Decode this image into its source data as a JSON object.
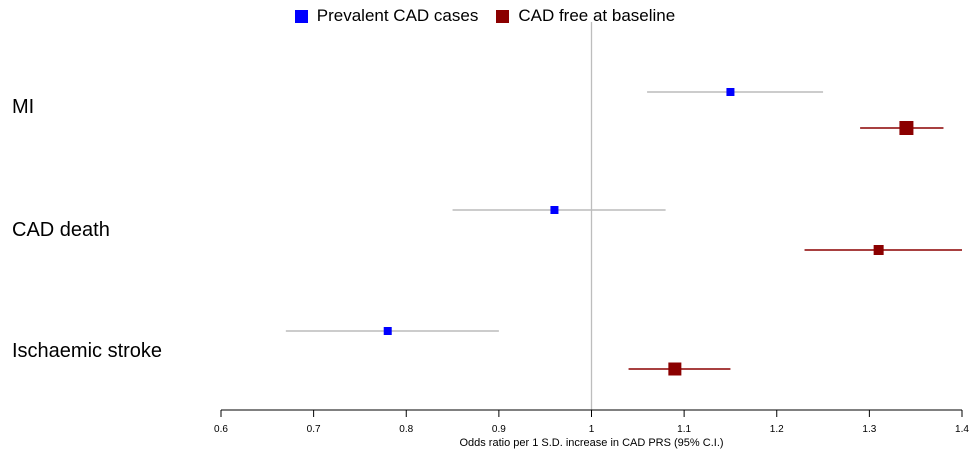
{
  "chart_data": {
    "type": "forest",
    "title": "",
    "xlabel": "Odds ratio per 1 S.D. increase in CAD PRS (95% C.I.)",
    "xlim": [
      0.6,
      1.4
    ],
    "xticks": [
      "0.6",
      "0.7",
      "0.8",
      "0.9",
      "1",
      "1.1",
      "1.2",
      "1.3",
      "1.4"
    ],
    "reference_line": 1,
    "legend_position": "top-center",
    "series": [
      {
        "name": "Prevalent CAD cases",
        "color": "#0000ff",
        "ci_color": "#bbbbbb"
      },
      {
        "name": "CAD free at baseline",
        "color": "#8b0000",
        "ci_color": "#8b0000"
      }
    ],
    "rows": [
      {
        "label": "MI",
        "values": [
          {
            "series": 0,
            "or": 1.15,
            "lo": 1.06,
            "hi": 1.25
          },
          {
            "series": 1,
            "or": 1.34,
            "lo": 1.29,
            "hi": 1.38
          }
        ]
      },
      {
        "label": "CAD death",
        "values": [
          {
            "series": 0,
            "or": 0.96,
            "lo": 0.85,
            "hi": 1.08
          },
          {
            "series": 1,
            "or": 1.31,
            "lo": 1.23,
            "hi": 1.4
          }
        ]
      },
      {
        "label": "Ischaemic stroke",
        "values": [
          {
            "series": 0,
            "or": 0.78,
            "lo": 0.67,
            "hi": 0.9
          },
          {
            "series": 1,
            "or": 1.09,
            "lo": 1.04,
            "hi": 1.15
          }
        ]
      }
    ]
  }
}
